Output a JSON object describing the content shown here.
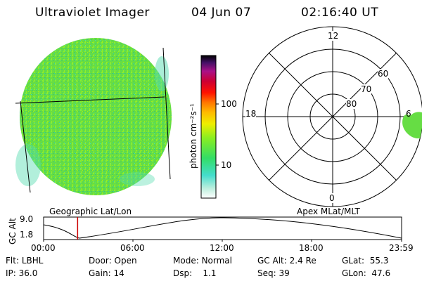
{
  "header": {
    "title": "Ultraviolet Imager",
    "date": "04 Jun 07",
    "time": "02:16:40 UT"
  },
  "colorbar": {
    "unit_label": "photon cm⁻²s⁻¹",
    "ticks": [
      "100",
      "10"
    ]
  },
  "polar_plot": {
    "mlt_labels": [
      "12",
      "18",
      "6",
      "0"
    ],
    "mlat_labels": [
      "60",
      "70",
      "80"
    ]
  },
  "timeline": {
    "left_caption": "Geographic Lat/Lon",
    "right_caption": "Apex MLat/MLT",
    "axis_label": "GC Alt",
    "y_labels": [
      "9.0",
      "1.8"
    ],
    "time_ticks": [
      "00:00",
      "06:00",
      "12:00",
      "18:00",
      "23:59"
    ],
    "current_time_fraction": 0.095,
    "marker_color": "#cc0000"
  },
  "status": {
    "row1": [
      {
        "label": "Flt:",
        "value": "LBHL"
      },
      {
        "label": "Door:",
        "value": "Open"
      },
      {
        "label": "Mode:",
        "value": "Normal"
      },
      {
        "label": "GC Alt:",
        "value": "2.4 Re"
      },
      {
        "label": "GLat:",
        "value": "55.3"
      }
    ],
    "row2": [
      {
        "label": "IP:",
        "value": "36.0"
      },
      {
        "label": "Gain:",
        "value": "14"
      },
      {
        "label": "Dsp:",
        "value": "1.1"
      },
      {
        "label": "Seq:",
        "value": "39"
      },
      {
        "label": "GLon:",
        "value": "47.6"
      }
    ]
  }
}
